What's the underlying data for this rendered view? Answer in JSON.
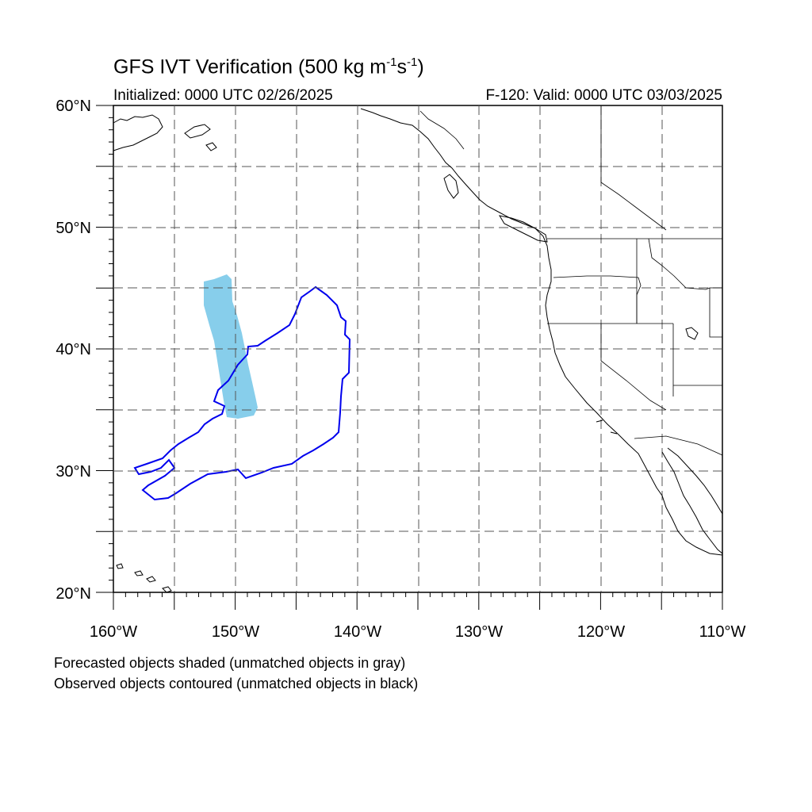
{
  "header": {
    "title_prefix": "GFS IVT Verification (500 kg m",
    "title_exp1": "-1",
    "title_mid": "s",
    "title_exp2": "-1",
    "title_suffix": ")",
    "initialized": "Initialized: 0000 UTC 02/26/2025",
    "valid": "F-120: Valid: 0000 UTC 03/03/2025"
  },
  "axes": {
    "lat_labels": [
      "60°N",
      "50°N",
      "40°N",
      "30°N",
      "20°N"
    ],
    "lon_labels": [
      "160°W",
      "150°W",
      "140°W",
      "130°W",
      "120°W",
      "110°W"
    ]
  },
  "map": {
    "lat_range": [
      20,
      60
    ],
    "lon_range": [
      -160,
      -110
    ],
    "gridline_interval_deg": 5,
    "forecast_object_color": "#87ceeb",
    "observed_contour_color": "#0000ee"
  },
  "footer": {
    "line1": "Forecasted objects shaded (unmatched objects in gray)",
    "line2": "Observed objects contoured (unmatched objects in black)"
  }
}
